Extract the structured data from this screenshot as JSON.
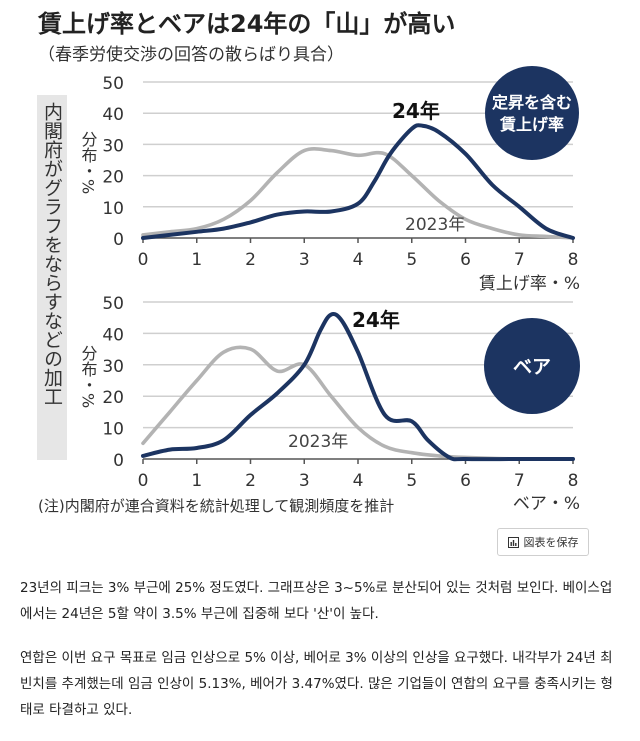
{
  "figure": {
    "title": "賃上げ率とベアは24年の「山」が高い",
    "subtitle": "（春季労使交渉の回答の散らばり具合）",
    "side_note": "内閣府がグラフをならすなどの加工",
    "footnote": "(注)内閣府が連合資料を統計処理して観測頻度を推計"
  },
  "colors": {
    "series_2024": "#1c3461",
    "series_2023": "#b3b3b3",
    "badge": "#1c3461",
    "side_band": "#e6e6e6"
  },
  "save_button": {
    "label": "図表を保存",
    "icon": "bar-chart-icon"
  },
  "article": {
    "paragraphs": [
      "23년의 피크는 3% 부근에 25% 정도였다. 그래프상은 3~5%로 분산되어 있는 것처럼 보인다. 베이스업에서는 24년은 5할 약이 3.5% 부근에 집중해 보다 '산'이 높다.",
      "연합은 이번 요구 목표로 임금 인상으로 5% 이상, 베어로 3% 이상의 인상을 요구했다. 내각부가 24년 최빈치를 추계했는데 임금 인상이 5.13%, 베어가 3.47%였다. 많은 기업들이 연합의 요구를 충족시키는 형태로 타결하고 있다."
    ]
  },
  "chart_data": [
    {
      "type": "line",
      "badge": "定昇を含む\n賃上げ率",
      "ylabel": "分布・%",
      "xlabel": "賃上げ率・%",
      "xlim": [
        0,
        8
      ],
      "ylim": [
        0,
        50
      ],
      "xticks": [
        "0",
        "1",
        "2",
        "3",
        "4",
        "5",
        "6",
        "7",
        "8"
      ],
      "yticks": [
        "0",
        "10",
        "20",
        "30",
        "40",
        "50"
      ],
      "series": [
        {
          "name": "24年",
          "x": [
            0,
            0.5,
            1,
            1.5,
            2,
            2.5,
            3,
            3.5,
            4,
            4.3,
            4.6,
            5,
            5.2,
            5.5,
            6,
            6.5,
            7,
            7.5,
            8
          ],
          "y": [
            0,
            1,
            2,
            3,
            5,
            7.5,
            8.5,
            8.5,
            11,
            18,
            27,
            35,
            36,
            34,
            27,
            17,
            10,
            3,
            0
          ]
        },
        {
          "name": "2023年",
          "x": [
            0,
            0.5,
            1,
            1.5,
            2,
            2.5,
            3,
            3.5,
            4,
            4.5,
            5,
            5.5,
            6,
            6.5,
            7,
            7.5,
            8
          ],
          "y": [
            1,
            2,
            3,
            6,
            12,
            21,
            28,
            28,
            26.5,
            27,
            20,
            12,
            6,
            3,
            1,
            0.5,
            0
          ]
        }
      ]
    },
    {
      "type": "line",
      "badge": "ベア",
      "ylabel": "分布・%",
      "xlabel": "ベア・%",
      "xlim": [
        0,
        8
      ],
      "ylim": [
        0,
        50
      ],
      "xticks": [
        "0",
        "1",
        "2",
        "3",
        "4",
        "5",
        "6",
        "7",
        "8"
      ],
      "yticks": [
        "0",
        "10",
        "20",
        "30",
        "40",
        "50"
      ],
      "series": [
        {
          "name": "24年",
          "x": [
            0,
            0.5,
            1,
            1.5,
            2,
            2.5,
            3,
            3.3,
            3.5,
            3.7,
            4,
            4.5,
            5,
            5.3,
            5.7,
            6,
            7,
            8
          ],
          "y": [
            1,
            3,
            3.5,
            6,
            14,
            21,
            30,
            41,
            46,
            44,
            34,
            14,
            12,
            6,
            0.5,
            0,
            0,
            0
          ]
        },
        {
          "name": "2023年",
          "x": [
            0,
            0.5,
            1,
            1.5,
            2,
            2.5,
            3,
            3.5,
            4,
            4.5,
            5,
            5.5,
            6,
            7,
            8
          ],
          "y": [
            5,
            15,
            25,
            34,
            35,
            28,
            30,
            20,
            10,
            4,
            2,
            1,
            0.5,
            0,
            0
          ]
        }
      ]
    }
  ]
}
